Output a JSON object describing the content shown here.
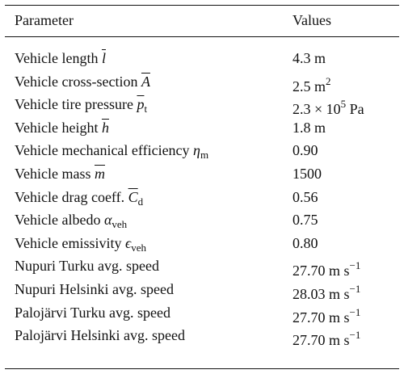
{
  "table": {
    "header": [
      "Parameter",
      "Values"
    ],
    "rows": [
      [
        [
          {
            "text": "Vehicle length ",
            "style": "normal"
          },
          {
            "text": "l",
            "style": "over"
          }
        ],
        [
          {
            "text": "4.3 m",
            "style": "normal"
          }
        ]
      ],
      [
        [
          {
            "text": "Vehicle cross-section ",
            "style": "normal"
          },
          {
            "text": "A",
            "style": "over"
          }
        ],
        [
          {
            "text": "2.5 m",
            "style": "normal"
          },
          {
            "text": "2",
            "style": "sup"
          }
        ]
      ],
      [
        [
          {
            "text": "Vehicle tire pressure ",
            "style": "normal"
          },
          {
            "text": "p",
            "style": "over"
          },
          {
            "text": "t",
            "style": "sub"
          }
        ],
        [
          {
            "text": "2.3 × 10",
            "style": "normal"
          },
          {
            "text": "5",
            "style": "sup"
          },
          {
            "text": " Pa",
            "style": "normal"
          }
        ]
      ],
      [
        [
          {
            "text": "Vehicle height ",
            "style": "normal"
          },
          {
            "text": "h",
            "style": "over"
          }
        ],
        [
          {
            "text": "1.8 m",
            "style": "normal"
          }
        ]
      ],
      [
        [
          {
            "text": "Vehicle mechanical efficiency ",
            "style": "normal"
          },
          {
            "text": "η",
            "style": "italic"
          },
          {
            "text": "m",
            "style": "sub"
          }
        ],
        [
          {
            "text": "0.90",
            "style": "normal"
          }
        ]
      ],
      [
        [
          {
            "text": "Vehicle mass ",
            "style": "normal"
          },
          {
            "text": "m",
            "style": "over"
          }
        ],
        [
          {
            "text": "1500",
            "style": "normal"
          }
        ]
      ],
      [
        [
          {
            "text": "Vehicle drag coeff. ",
            "style": "normal"
          },
          {
            "text": "C",
            "style": "over"
          },
          {
            "text": "d",
            "style": "sub"
          }
        ],
        [
          {
            "text": "0.56",
            "style": "normal"
          }
        ]
      ],
      [
        [
          {
            "text": "Vehicle albedo ",
            "style": "normal"
          },
          {
            "text": "α",
            "style": "italic"
          },
          {
            "text": "veh",
            "style": "sub"
          }
        ],
        [
          {
            "text": "0.75",
            "style": "normal"
          }
        ]
      ],
      [
        [
          {
            "text": "Vehicle emissivity ",
            "style": "normal"
          },
          {
            "text": "ϵ",
            "style": "italic"
          },
          {
            "text": "veh",
            "style": "sub"
          }
        ],
        [
          {
            "text": "0.80",
            "style": "normal"
          }
        ]
      ],
      [
        [
          {
            "text": "Nupuri Turku avg. speed",
            "style": "normal"
          }
        ],
        [
          {
            "text": "27.70 m s",
            "style": "normal"
          },
          {
            "text": "−1",
            "style": "sup"
          }
        ]
      ],
      [
        [
          {
            "text": "Nupuri Helsinki avg. speed",
            "style": "normal"
          }
        ],
        [
          {
            "text": "28.03 m s",
            "style": "normal"
          },
          {
            "text": "−1",
            "style": "sup"
          }
        ]
      ],
      [
        [
          {
            "text": "Palojärvi Turku avg. speed",
            "style": "normal"
          }
        ],
        [
          {
            "text": "27.70 m s",
            "style": "normal"
          },
          {
            "text": "−1",
            "style": "sup"
          }
        ]
      ],
      [
        [
          {
            "text": "Palojärvi Helsinki avg. speed",
            "style": "normal"
          }
        ],
        [
          {
            "text": "27.70 m s",
            "style": "normal"
          },
          {
            "text": "−1",
            "style": "sup"
          }
        ]
      ]
    ]
  }
}
